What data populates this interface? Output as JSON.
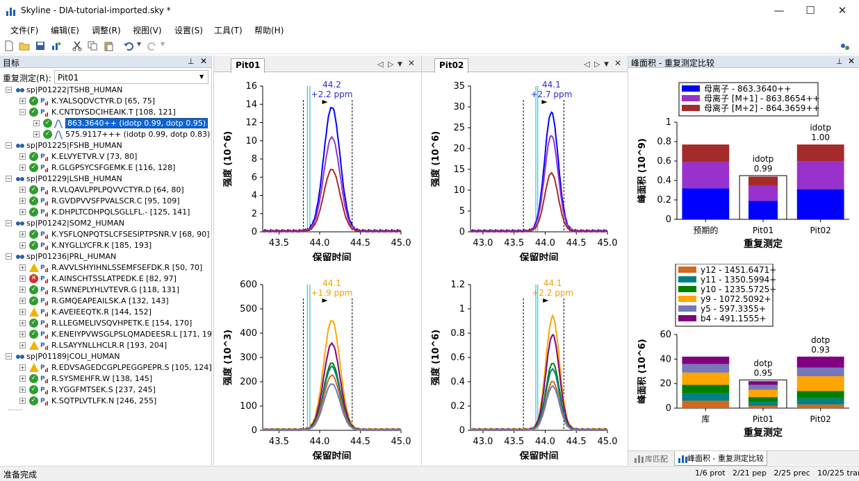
{
  "window": {
    "title": "Skyline - DIA-tutorial-imported.sky *",
    "min": "—",
    "max": "☐",
    "close": "✕"
  },
  "menu": [
    "文件(F)",
    "编辑(E)",
    "调整(R)",
    "视图(V)",
    "设置(S)",
    "工具(T)",
    "帮助(H)"
  ],
  "targets": {
    "title": "目标",
    "replicate_label": "重复测定(R):",
    "replicate_value": "Pit01",
    "nodes": [
      {
        "level": 0,
        "text": "sp|P01222|TSHB_HUMAN",
        "icon": "protein"
      },
      {
        "level": 1,
        "text": "K.YALSQDVCTYR.D [65, 75]",
        "icon": "ok"
      },
      {
        "level": 1,
        "text": "K.CNTDYSDCIHEAIK.T [108, 121]",
        "icon": "ok",
        "expanded": true
      },
      {
        "level": 2,
        "text": "863.3640++ (idotp 0.99, dotp 0.95)",
        "icon": "ok",
        "selected": true
      },
      {
        "level": 2,
        "text": "575.9117+++ (idotp 0.99, dotp 0.83)",
        "icon": "ok"
      },
      {
        "level": 0,
        "text": "sp|P01225|FSHB_HUMAN",
        "icon": "protein"
      },
      {
        "level": 1,
        "text": "K.ELVYETVR.V [73, 80]",
        "icon": "ok"
      },
      {
        "level": 1,
        "text": "R.GLGPSYCSFGEMK.E [116, 128]",
        "icon": "ok"
      },
      {
        "level": 0,
        "text": "sp|P01229|LSHB_HUMAN",
        "icon": "protein"
      },
      {
        "level": 1,
        "text": "R.VLQAVLPPLPQVVCTYR.D [64, 80]",
        "icon": "ok"
      },
      {
        "level": 1,
        "text": "R.GVDPVVSFPVALSCR.C [95, 109]",
        "icon": "ok"
      },
      {
        "level": 1,
        "text": "K.DHPLTCDHPQLSGLLFL.- [125, 141]",
        "icon": "ok"
      },
      {
        "level": 0,
        "text": "sp|P01242|SOM2_HUMAN",
        "icon": "protein"
      },
      {
        "level": 1,
        "text": "K.YSFLQNPQTSLCFSESIPTPSNR.V [68, 90]",
        "icon": "ok"
      },
      {
        "level": 1,
        "text": "K.NYGLLYCFR.K [185, 193]",
        "icon": "ok"
      },
      {
        "level": 0,
        "text": "sp|P01236|PRL_HUMAN",
        "icon": "protein"
      },
      {
        "level": 1,
        "text": "R.AVVLSHYIHNLSSEMFSEFDK.R [50, 70]",
        "icon": "warn"
      },
      {
        "level": 1,
        "text": "K.AINSCHTSSLATPEDK.E [82, 97]",
        "icon": "err"
      },
      {
        "level": 1,
        "text": "R.SWNEPLYHLVTEVR.G [118, 131]",
        "icon": "ok"
      },
      {
        "level": 1,
        "text": "R.GMQEAPEAILSK.A [132, 143]",
        "icon": "ok"
      },
      {
        "level": 1,
        "text": "K.AVEIEEQTK.R [144, 152]",
        "icon": "warn"
      },
      {
        "level": 1,
        "text": "R.LLEGMELIVSQVHPETK.E [154, 170]",
        "icon": "ok"
      },
      {
        "level": 1,
        "text": "K.ENEIYPVWSGLPSLQMADEESR.L [171, 192]",
        "icon": "ok"
      },
      {
        "level": 1,
        "text": "R.LSAYYNLLHCLR.R [193, 204]",
        "icon": "warn"
      },
      {
        "level": 0,
        "text": "sp|P01189|COLI_HUMAN",
        "icon": "protein"
      },
      {
        "level": 1,
        "text": "R.EDVSAGEDCGPLPEGGPEPR.S [105, 124]",
        "icon": "warn"
      },
      {
        "level": 1,
        "text": "R.SYSMEHFR.W [138, 145]",
        "icon": "ok"
      },
      {
        "level": 1,
        "text": "R.YGGFMTSEK.S [237, 245]",
        "icon": "ok"
      },
      {
        "level": 1,
        "text": "K.SQTPLVTLFK.N [246, 255]",
        "icon": "ok"
      }
    ]
  },
  "docs": [
    {
      "tab": "Pit01"
    },
    {
      "tab": "Pit02"
    }
  ],
  "peak_panel": {
    "title": "峰面积 - 重复测定比较",
    "bottom_tabs": [
      "库匹配",
      "峰面积 - 重复测定比较"
    ]
  },
  "status": {
    "left": "准备完成",
    "right": "1/6 prot   2/21 pep   2/25 prec   10/225 tran"
  },
  "chart_data": [
    {
      "type": "line",
      "panel": "Pit01 precursor",
      "ylabel": "强度 (10^6)",
      "xlabel": "保留时间",
      "xlim": [
        43.3,
        45.0
      ],
      "ylim": [
        0,
        16
      ],
      "xticks": [
        43.5,
        44.0,
        44.5,
        45.0
      ],
      "yticks": [
        0,
        2,
        4,
        6,
        8,
        10,
        12,
        14,
        16
      ],
      "annotation": [
        "44.2",
        "+2.2 ppm"
      ],
      "annotation_color": "#2a2ad6",
      "peak_rt": 44.15,
      "boundaries": [
        43.8,
        44.4
      ],
      "ids": [
        43.85,
        43.88
      ],
      "series": [
        {
          "color": "#0000ff",
          "peak": 13.6
        },
        {
          "color": "#9932cc",
          "peak": 10.3
        },
        {
          "color": "#a52a2a",
          "peak": 6.8
        }
      ]
    },
    {
      "type": "line",
      "panel": "Pit02 precursor",
      "ylabel": "强度 (10^6)",
      "xlabel": "保留时间",
      "xlim": [
        42.8,
        45.0
      ],
      "ylim": [
        0,
        35
      ],
      "xticks": [
        43.0,
        43.5,
        44.0,
        44.5,
        45.0
      ],
      "yticks": [
        0,
        5,
        10,
        15,
        20,
        25,
        30,
        35
      ],
      "annotation": [
        "44.1",
        "+2.7 ppm"
      ],
      "annotation_color": "#2a2ad6",
      "peak_rt": 44.1,
      "boundaries": [
        43.65,
        44.3
      ],
      "ids": [
        43.85,
        43.88
      ],
      "series": [
        {
          "color": "#0000ff",
          "peak": 28.5
        },
        {
          "color": "#9932cc",
          "peak": 23.0
        },
        {
          "color": "#a52a2a",
          "peak": 14.0
        }
      ]
    },
    {
      "type": "line",
      "panel": "Pit01 fragments",
      "ylabel": "强度 (10^3)",
      "xlabel": "保留时间",
      "xlim": [
        43.3,
        45.0
      ],
      "ylim": [
        0,
        600
      ],
      "xticks": [
        43.5,
        44.0,
        44.5,
        45.0
      ],
      "yticks": [
        0,
        100,
        200,
        300,
        400,
        500,
        600
      ],
      "annotation": [
        "44.1",
        "+1.9 ppm"
      ],
      "annotation_color": "#f0a000",
      "peak_rt": 44.15,
      "boundaries": [
        43.8,
        44.4
      ],
      "ids": [
        43.85,
        43.88
      ],
      "series": [
        {
          "color": "#ffa500",
          "peak": 450
        },
        {
          "color": "#800080",
          "peak": 355
        },
        {
          "color": "#008000",
          "peak": 275
        },
        {
          "color": "#008080",
          "peak": 260
        },
        {
          "color": "#d2691e",
          "peak": 225
        },
        {
          "color": "#7777bb",
          "peak": 190
        }
      ]
    },
    {
      "type": "line",
      "panel": "Pit02 fragments",
      "ylabel": "强度 (10^6)",
      "xlabel": "保留时间",
      "xlim": [
        42.8,
        45.0
      ],
      "ylim": [
        0,
        1.2
      ],
      "xticks": [
        43.0,
        43.5,
        44.0,
        44.5,
        45.0
      ],
      "yticks": [
        0,
        0.2,
        0.4,
        0.6,
        0.8,
        1,
        1.2
      ],
      "annotation": [
        "44.1",
        "+2.2 ppm"
      ],
      "annotation_color": "#f0a000",
      "peak_rt": 44.12,
      "boundaries": [
        43.65,
        44.3
      ],
      "ids": [
        43.85,
        43.88
      ],
      "series": [
        {
          "color": "#ffa500",
          "peak": 0.93
        },
        {
          "color": "#800080",
          "peak": 0.78
        },
        {
          "color": "#008000",
          "peak": 0.55
        },
        {
          "color": "#008080",
          "peak": 0.5
        },
        {
          "color": "#d2691e",
          "peak": 0.4
        },
        {
          "color": "#7777bb",
          "peak": 0.36
        }
      ]
    },
    {
      "type": "bar",
      "stacked": true,
      "panel": "precursor areas",
      "ylabel": "峰面积 (10^9)",
      "xlabel": "重复测定",
      "categories": [
        "预期的",
        "Pit01",
        "Pit02"
      ],
      "ylim": [
        0,
        1
      ],
      "yticks": [
        0,
        0.2,
        0.4,
        0.6,
        0.8,
        1
      ],
      "series": [
        {
          "name": "母离子 - 863.3640++",
          "color": "#0000ff",
          "values": [
            0.32,
            0.19,
            0.31
          ]
        },
        {
          "name": "母离子 [M+1] - 863.8654++",
          "color": "#9932cc",
          "values": [
            0.27,
            0.16,
            0.29
          ]
        },
        {
          "name": "母离子 [M+2] - 864.3659++",
          "color": "#a52a2a",
          "values": [
            0.18,
            0.09,
            0.17
          ]
        }
      ],
      "box_totals": [
        null,
        0.45,
        null
      ],
      "labels": [
        null,
        [
          "idotp",
          "0.99"
        ],
        [
          "idotp",
          "1.00"
        ]
      ]
    },
    {
      "type": "bar",
      "stacked": true,
      "panel": "fragment areas",
      "ylabel": "峰面积 (10^6)",
      "xlabel": "重复测定",
      "categories": [
        "库",
        "Pit01",
        "Pit02"
      ],
      "ylim": [
        0,
        60
      ],
      "yticks": [
        0,
        20,
        40,
        60
      ],
      "series": [
        {
          "name": "y12 - 1451.6471+",
          "color": "#d2691e",
          "values": [
            6,
            2,
            3
          ]
        },
        {
          "name": "y11 - 1350.5994+",
          "color": "#008080",
          "values": [
            6,
            3,
            5
          ]
        },
        {
          "name": "y10 - 1235.5725+",
          "color": "#008000",
          "values": [
            7,
            4,
            6
          ]
        },
        {
          "name": "y9 - 1072.5092+",
          "color": "#ffa500",
          "values": [
            10,
            6,
            12
          ]
        },
        {
          "name": "y5 - 597.3355+",
          "color": "#7777bb",
          "values": [
            7,
            4,
            7
          ]
        },
        {
          "name": "b4 - 491.1555+",
          "color": "#800080",
          "values": [
            6,
            3,
            9
          ]
        }
      ],
      "box_totals": [
        null,
        23,
        null
      ],
      "labels": [
        null,
        [
          "dotp",
          "0.95"
        ],
        [
          "dotp",
          "0.93"
        ]
      ]
    }
  ]
}
